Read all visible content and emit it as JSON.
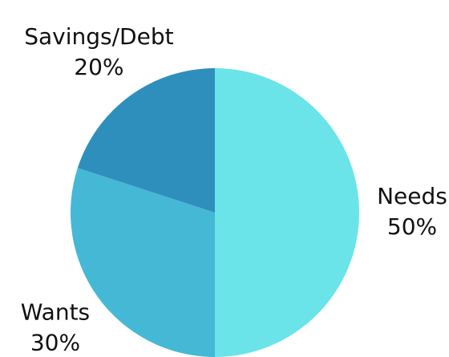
{
  "chart_data": {
    "type": "pie",
    "categories": [
      "Needs",
      "Wants",
      "Savings/Debt"
    ],
    "values": [
      50,
      30,
      20
    ],
    "value_labels": [
      "50%",
      "30%",
      "20%"
    ],
    "colors": [
      "#6ae4e9",
      "#45b8d6",
      "#2e8fbd"
    ]
  }
}
